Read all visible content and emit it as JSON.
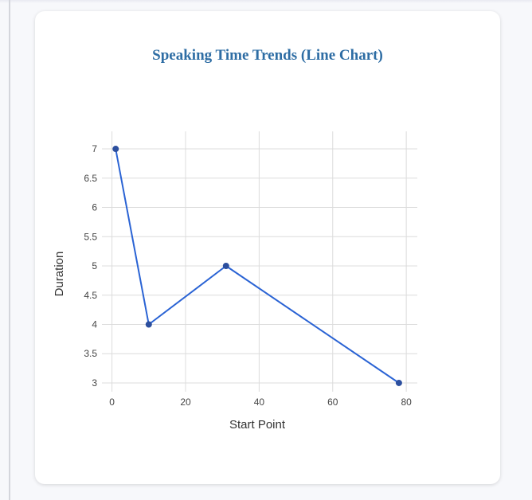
{
  "chart_data": {
    "type": "line",
    "title": "Speaking Time Trends (Line Chart)",
    "xlabel": "Start Point",
    "ylabel": "Duration",
    "xlim": [
      -1,
      83
    ],
    "ylim": [
      2.85,
      7.3
    ],
    "xticks": [
      0,
      20,
      40,
      60,
      80
    ],
    "yticks": [
      3,
      3.5,
      4,
      4.5,
      5,
      5.5,
      6,
      6.5,
      7
    ],
    "grid": true,
    "series": [
      {
        "points": [
          {
            "x": 1,
            "y": 7
          },
          {
            "x": 10,
            "y": 4
          },
          {
            "x": 31,
            "y": 5
          },
          {
            "x": 78,
            "y": 3
          }
        ]
      }
    ]
  },
  "colors": {
    "line": "#2a63d4",
    "marker": "#2c4f9e",
    "grid": "#dcdcdc",
    "title": "#2e6da4"
  }
}
